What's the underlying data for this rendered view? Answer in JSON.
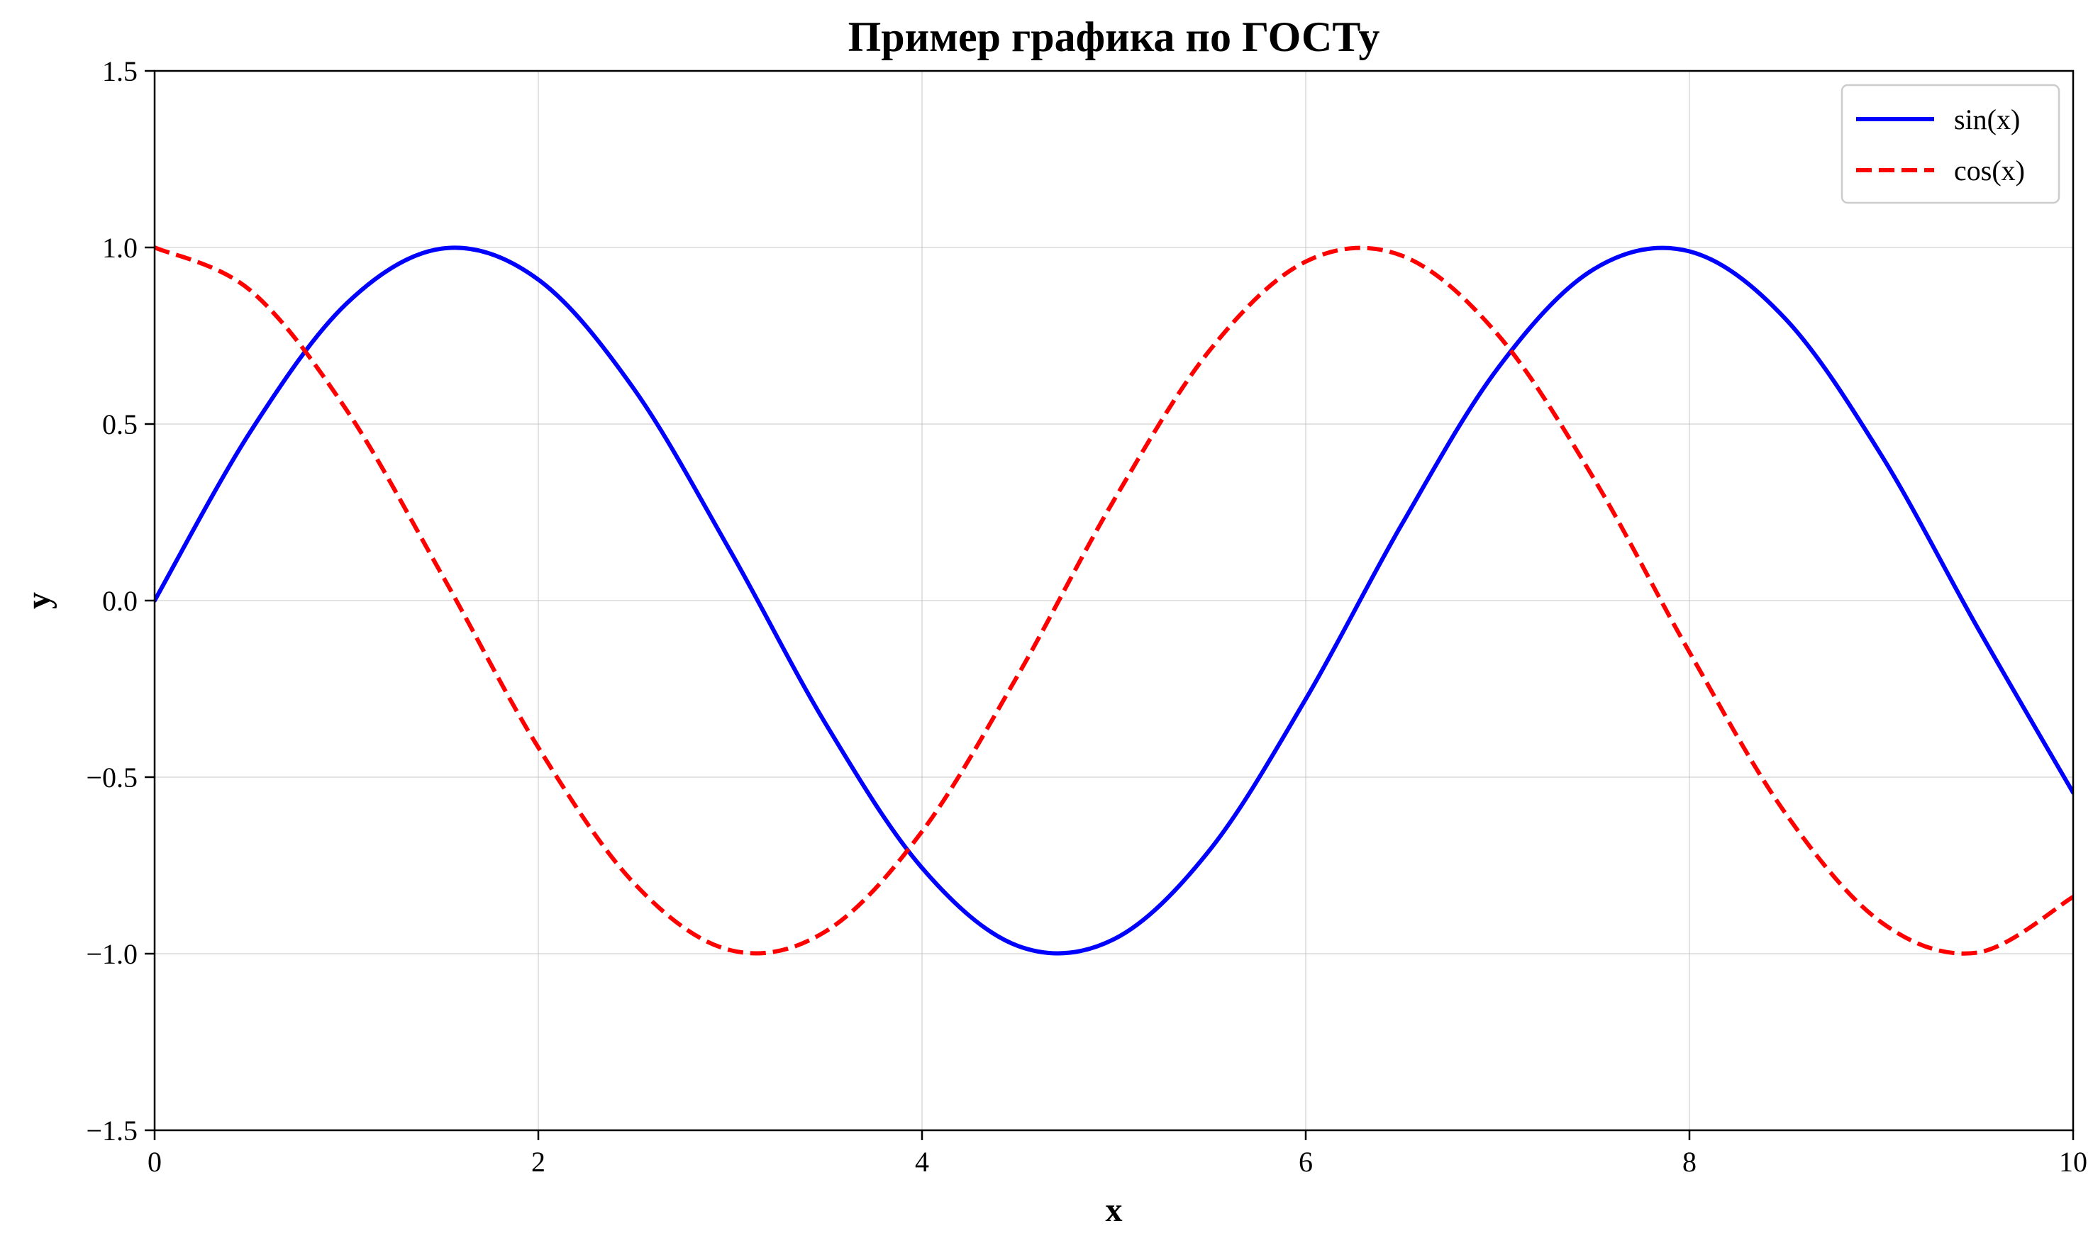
{
  "chart_data": {
    "type": "line",
    "title": "Пример графика по ГОСТу",
    "xlabel": "x",
    "ylabel": "y",
    "xlim": [
      0,
      10
    ],
    "ylim": [
      -1.5,
      1.5
    ],
    "xticks": [
      0,
      2,
      4,
      6,
      8,
      10
    ],
    "xtick_labels": [
      "0",
      "2",
      "4",
      "6",
      "8",
      "10"
    ],
    "yticks": [
      -1.5,
      -1.0,
      -0.5,
      0.0,
      0.5,
      1.0,
      1.5
    ],
    "ytick_labels": [
      "−1.5",
      "−1.0",
      "−0.5",
      "0.0",
      "0.5",
      "1.0",
      "1.5"
    ],
    "grid": true,
    "legend_position": "top-right",
    "x": [
      0.0,
      0.5,
      1.0,
      1.5,
      2.0,
      2.5,
      3.0,
      3.5,
      4.0,
      4.5,
      5.0,
      5.5,
      6.0,
      6.5,
      7.0,
      7.5,
      8.0,
      8.5,
      9.0,
      9.5,
      10.0
    ],
    "series": [
      {
        "name": "sin(x)",
        "color": "#0000ff",
        "style": "solid",
        "values": [
          0.0,
          0.479,
          0.841,
          0.997,
          0.909,
          0.598,
          0.141,
          -0.351,
          -0.757,
          -0.978,
          -0.959,
          -0.706,
          -0.279,
          0.215,
          0.657,
          0.938,
          0.989,
          0.798,
          0.412,
          -0.075,
          -0.544
        ]
      },
      {
        "name": "cos(x)",
        "color": "#ff0000",
        "style": "dashed",
        "values": [
          1.0,
          0.878,
          0.54,
          0.071,
          -0.416,
          -0.801,
          -0.99,
          -0.936,
          -0.654,
          -0.211,
          0.284,
          0.709,
          0.96,
          0.977,
          0.754,
          0.347,
          -0.146,
          -0.602,
          -0.911,
          -0.997,
          -0.839
        ]
      }
    ]
  }
}
